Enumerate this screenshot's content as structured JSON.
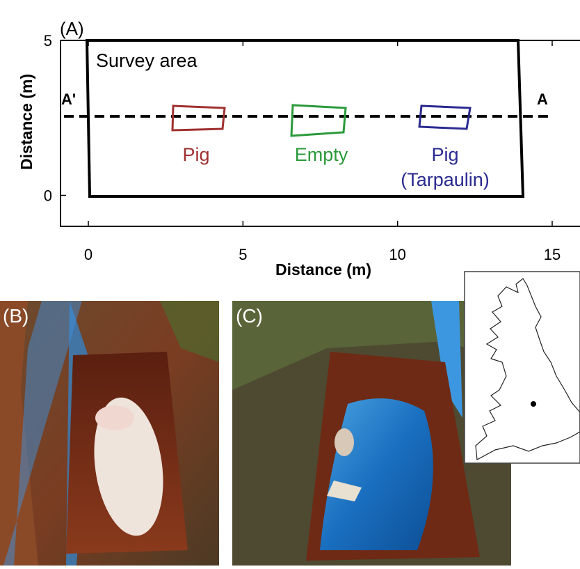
{
  "panel_a": {
    "label": "(A)",
    "survey_label": "Survey area",
    "line_start": "A'",
    "line_end": "A",
    "targets": [
      {
        "label": "Pig"
      },
      {
        "label": "Empty"
      },
      {
        "label": "Pig",
        "sublabel": "(Tarpaulin)"
      }
    ],
    "xlabel": "Distance (m)",
    "ylabel": "Distance (m)",
    "xlim": [
      -0.9,
      15.9
    ],
    "ylim": [
      -1,
      5
    ],
    "xticks": [
      0,
      5,
      10,
      15
    ],
    "yticks": [
      0,
      5
    ]
  },
  "panel_b": {
    "label": "(B)"
  },
  "panel_c": {
    "label": "(C)"
  }
}
